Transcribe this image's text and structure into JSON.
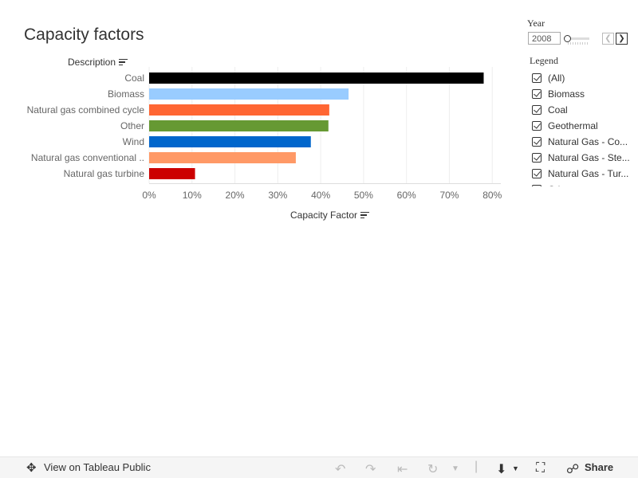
{
  "title": "Capacity factors",
  "chart_data": {
    "type": "bar",
    "orientation": "horizontal",
    "row_header": "Description",
    "categories": [
      "Coal",
      "Biomass",
      "Natural gas combined cycle",
      "Other",
      "Wind",
      "Natural gas conventional ..",
      "Natural gas turbine"
    ],
    "values": [
      0.78,
      0.465,
      0.42,
      0.418,
      0.377,
      0.342,
      0.107
    ],
    "colors": [
      "#000000",
      "#99ccff",
      "#ff6633",
      "#669933",
      "#0066cc",
      "#ff9966",
      "#cc0000"
    ],
    "xlabel": "Capacity Factor",
    "xlim": [
      0,
      0.82
    ],
    "xticks": [
      0,
      0.1,
      0.2,
      0.3,
      0.4,
      0.5,
      0.6,
      0.7,
      0.8
    ],
    "xtick_labels": [
      "0%",
      "10%",
      "20%",
      "30%",
      "40%",
      "50%",
      "60%",
      "70%",
      "80%"
    ],
    "grid": true
  },
  "filters": {
    "year_label": "Year",
    "year_value": "2008",
    "prev_icon": "chevron-left-icon",
    "next_icon": "chevron-right-icon"
  },
  "legend": {
    "title": "Legend",
    "items": [
      "(All)",
      "Biomass",
      "Coal",
      "Geothermal",
      "Natural Gas - Co...",
      "Natural Gas - Ste...",
      "Natural Gas - Tur...",
      "Other"
    ]
  },
  "toolbar": {
    "view_label": "View on Tableau Public",
    "share_label": "Share"
  }
}
